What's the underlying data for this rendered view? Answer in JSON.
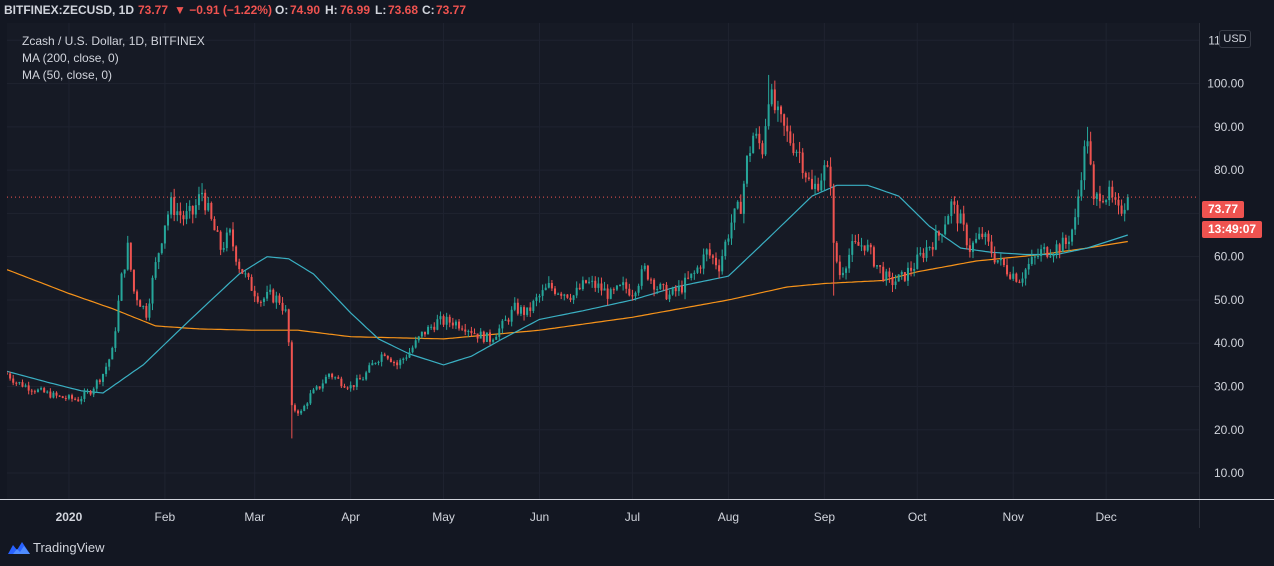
{
  "header": {
    "symbol": "BITFINEX:ZECUSD, 1D",
    "last": "73.77",
    "change": "▼ −0.91 (−1.22%)",
    "open_label": "O:",
    "open": "74.90",
    "high_label": "H:",
    "high": "76.99",
    "low_label": "L:",
    "low": "73.68",
    "close_label": "C:",
    "close": "73.77"
  },
  "legend": {
    "title": "Zcash / U.S. Dollar, 1D, BITFINEX",
    "ma200": "MA (200, close, 0)",
    "ma50": "MA (50, close, 0)"
  },
  "axis": {
    "currency": "USD",
    "price_tag": "73.77",
    "countdown": "13:49:07"
  },
  "brand": "TradingView",
  "colors": {
    "up": "#26a69a",
    "down": "#ef5350",
    "ma200": "#f7931a",
    "ma50": "#3ab0c3",
    "background": "#161a25",
    "grid": "#1f2330",
    "text": "#d1d4dc"
  },
  "chart_data": {
    "type": "candlestick",
    "title": "Zcash / U.S. Dollar, 1D, BITFINEX",
    "ylim": [
      4,
      114
    ],
    "y_ticks": [
      10,
      20,
      30,
      40,
      50,
      60,
      70,
      80,
      90,
      100,
      110
    ],
    "x_ticks": [
      {
        "label": "2020",
        "date": "2020-01-01"
      },
      {
        "label": "Feb",
        "date": "2020-02-01"
      },
      {
        "label": "Mar",
        "date": "2020-03-01"
      },
      {
        "label": "Apr",
        "date": "2020-04-01"
      },
      {
        "label": "May",
        "date": "2020-05-01"
      },
      {
        "label": "Jun",
        "date": "2020-06-01"
      },
      {
        "label": "Jul",
        "date": "2020-07-01"
      },
      {
        "label": "Aug",
        "date": "2020-08-01"
      },
      {
        "label": "Sep",
        "date": "2020-09-01"
      },
      {
        "label": "Oct",
        "date": "2020-10-01"
      },
      {
        "label": "Nov",
        "date": "2020-11-01"
      },
      {
        "label": "Dec",
        "date": "2020-12-01"
      }
    ],
    "x_range": [
      "2019-12-12",
      "2020-12-31"
    ],
    "current_price": 73.77,
    "grid": true,
    "close_anchors": [
      [
        "2019-12-12",
        33
      ],
      [
        "2019-12-15",
        31
      ],
      [
        "2019-12-22",
        29
      ],
      [
        "2019-12-29",
        27.5
      ],
      [
        "2020-01-04",
        27
      ],
      [
        "2020-01-08",
        29
      ],
      [
        "2020-01-12",
        33
      ],
      [
        "2020-01-15",
        38
      ],
      [
        "2020-01-18",
        55
      ],
      [
        "2020-01-20",
        62
      ],
      [
        "2020-01-22",
        52
      ],
      [
        "2020-01-26",
        47
      ],
      [
        "2020-01-29",
        58
      ],
      [
        "2020-02-01",
        68
      ],
      [
        "2020-02-03",
        72
      ],
      [
        "2020-02-07",
        69
      ],
      [
        "2020-02-10",
        70
      ],
      [
        "2020-02-13",
        75
      ],
      [
        "2020-02-16",
        68
      ],
      [
        "2020-02-19",
        62
      ],
      [
        "2020-02-22",
        65
      ],
      [
        "2020-02-25",
        58
      ],
      [
        "2020-02-28",
        54
      ],
      [
        "2020-03-03",
        50
      ],
      [
        "2020-03-06",
        51
      ],
      [
        "2020-03-09",
        50
      ],
      [
        "2020-03-11",
        47
      ],
      [
        "2020-03-12",
        40
      ],
      [
        "2020-03-13",
        25
      ],
      [
        "2020-03-16",
        24
      ],
      [
        "2020-03-19",
        28
      ],
      [
        "2020-03-22",
        30
      ],
      [
        "2020-03-25",
        33
      ],
      [
        "2020-03-29",
        31
      ],
      [
        "2020-04-01",
        30
      ],
      [
        "2020-04-05",
        32
      ],
      [
        "2020-04-09",
        36
      ],
      [
        "2020-04-12",
        38
      ],
      [
        "2020-04-16",
        35
      ],
      [
        "2020-04-20",
        38
      ],
      [
        "2020-04-24",
        42
      ],
      [
        "2020-04-29",
        45
      ],
      [
        "2020-05-04",
        45
      ],
      [
        "2020-05-08",
        44
      ],
      [
        "2020-05-12",
        42
      ],
      [
        "2020-05-16",
        41
      ],
      [
        "2020-05-20",
        44
      ],
      [
        "2020-05-24",
        48
      ],
      [
        "2020-05-28",
        47
      ],
      [
        "2020-05-31",
        50
      ],
      [
        "2020-06-04",
        53
      ],
      [
        "2020-06-08",
        52
      ],
      [
        "2020-06-12",
        51
      ],
      [
        "2020-06-16",
        54
      ],
      [
        "2020-06-20",
        53
      ],
      [
        "2020-06-24",
        51
      ],
      [
        "2020-06-28",
        53
      ],
      [
        "2020-07-01",
        52
      ],
      [
        "2020-07-05",
        57
      ],
      [
        "2020-07-09",
        53
      ],
      [
        "2020-07-13",
        51
      ],
      [
        "2020-07-17",
        53
      ],
      [
        "2020-07-21",
        56
      ],
      [
        "2020-07-25",
        61
      ],
      [
        "2020-07-29",
        58
      ],
      [
        "2020-08-02",
        68
      ],
      [
        "2020-08-05",
        72
      ],
      [
        "2020-08-07",
        82
      ],
      [
        "2020-08-09",
        88
      ],
      [
        "2020-08-12",
        85
      ],
      [
        "2020-08-14",
        98
      ],
      [
        "2020-08-17",
        92
      ],
      [
        "2020-08-20",
        88
      ],
      [
        "2020-08-24",
        84
      ],
      [
        "2020-08-28",
        75
      ],
      [
        "2020-09-01",
        80
      ],
      [
        "2020-09-03",
        78
      ],
      [
        "2020-09-04",
        62
      ],
      [
        "2020-09-06",
        56
      ],
      [
        "2020-09-10",
        62
      ],
      [
        "2020-09-14",
        63
      ],
      [
        "2020-09-18",
        58
      ],
      [
        "2020-09-22",
        54
      ],
      [
        "2020-09-26",
        55
      ],
      [
        "2020-09-30",
        58
      ],
      [
        "2020-10-04",
        62
      ],
      [
        "2020-10-08",
        65
      ],
      [
        "2020-10-12",
        72
      ],
      [
        "2020-10-15",
        68
      ],
      [
        "2020-10-18",
        62
      ],
      [
        "2020-10-22",
        65
      ],
      [
        "2020-10-26",
        60
      ],
      [
        "2020-10-30",
        57
      ],
      [
        "2020-11-03",
        55
      ],
      [
        "2020-11-06",
        58
      ],
      [
        "2020-11-10",
        61
      ],
      [
        "2020-11-14",
        62
      ],
      [
        "2020-11-18",
        63
      ],
      [
        "2020-11-21",
        68
      ],
      [
        "2020-11-23",
        80
      ],
      [
        "2020-11-25",
        88
      ],
      [
        "2020-11-27",
        72
      ],
      [
        "2020-11-29",
        75
      ],
      [
        "2020-12-02",
        74
      ],
      [
        "2020-12-05",
        70
      ],
      [
        "2020-12-08",
        73.77
      ]
    ],
    "ma200_anchors": [
      [
        "2019-12-12",
        57
      ],
      [
        "2020-01-01",
        51.5
      ],
      [
        "2020-01-15",
        48
      ],
      [
        "2020-01-29",
        44
      ],
      [
        "2020-02-12",
        43.3
      ],
      [
        "2020-03-01",
        43
      ],
      [
        "2020-03-15",
        43
      ],
      [
        "2020-04-01",
        41.5
      ],
      [
        "2020-05-01",
        41
      ],
      [
        "2020-06-01",
        43
      ],
      [
        "2020-07-01",
        46
      ],
      [
        "2020-08-01",
        50
      ],
      [
        "2020-08-20",
        53
      ],
      [
        "2020-09-01",
        53.8
      ],
      [
        "2020-09-20",
        54.5
      ],
      [
        "2020-10-01",
        56.5
      ],
      [
        "2020-10-20",
        59
      ],
      [
        "2020-11-10",
        60.5
      ],
      [
        "2020-11-25",
        62
      ],
      [
        "2020-12-08",
        63.5
      ]
    ],
    "ma50_anchors": [
      [
        "2019-12-12",
        33.5
      ],
      [
        "2019-12-25",
        31
      ],
      [
        "2020-01-05",
        29
      ],
      [
        "2020-01-12",
        28.5
      ],
      [
        "2020-01-25",
        35
      ],
      [
        "2020-02-10",
        46
      ],
      [
        "2020-02-25",
        56
      ],
      [
        "2020-03-05",
        60
      ],
      [
        "2020-03-12",
        59.5
      ],
      [
        "2020-03-20",
        56
      ],
      [
        "2020-04-01",
        47
      ],
      [
        "2020-04-10",
        41
      ],
      [
        "2020-04-20",
        37.5
      ],
      [
        "2020-05-01",
        35
      ],
      [
        "2020-05-10",
        37
      ],
      [
        "2020-05-20",
        41
      ],
      [
        "2020-06-01",
        45.5
      ],
      [
        "2020-06-15",
        47.5
      ],
      [
        "2020-07-01",
        50
      ],
      [
        "2020-07-15",
        53
      ],
      [
        "2020-08-01",
        55.5
      ],
      [
        "2020-08-15",
        65
      ],
      [
        "2020-08-28",
        74
      ],
      [
        "2020-09-05",
        76.5
      ],
      [
        "2020-09-15",
        76.5
      ],
      [
        "2020-09-25",
        74
      ],
      [
        "2020-10-05",
        67
      ],
      [
        "2020-10-15",
        62
      ],
      [
        "2020-10-25",
        61
      ],
      [
        "2020-11-05",
        60.5
      ],
      [
        "2020-11-15",
        60.5
      ],
      [
        "2020-11-25",
        62
      ],
      [
        "2020-12-08",
        65
      ]
    ],
    "notable_wicks": [
      [
        "2020-03-13",
        18
      ],
      [
        "2020-08-14",
        102
      ],
      [
        "2020-11-25",
        90
      ],
      [
        "2020-02-13",
        77
      ],
      [
        "2020-09-04",
        51
      ]
    ]
  }
}
